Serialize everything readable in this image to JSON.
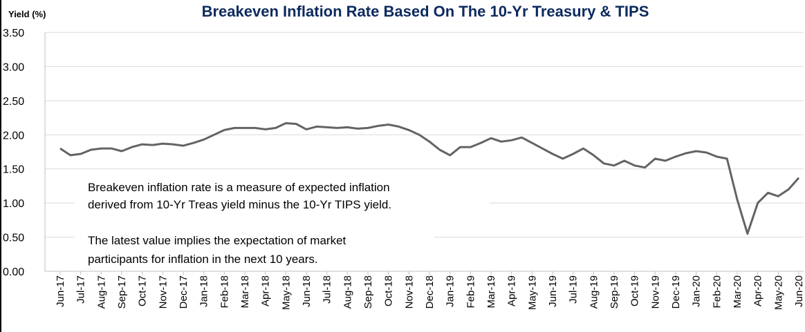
{
  "chart_data": {
    "type": "line",
    "title": "Breakeven Inflation Rate Based On The 10-Yr Treasury & TIPS",
    "y_label": "Yield (%)",
    "annotations": [
      "Breakeven inflation rate is a measure of expected inflation",
      "derived from 10-Yr Treas yield minus the 10-Yr TIPS yield.",
      "The latest value implies the expectation of market",
      "participants for inflation in the next 10 years."
    ],
    "categories": [
      "Jun-17",
      null,
      "Jul-17",
      null,
      "Aug-17",
      null,
      "Sep-17",
      null,
      "Oct-17",
      null,
      "Nov-17",
      null,
      "Dec-17",
      null,
      "Jan-18",
      null,
      "Feb-18",
      null,
      "Mar-18",
      null,
      "Apr-18",
      null,
      "May-18",
      null,
      "Jun-18",
      null,
      "Jul-18",
      null,
      "Aug-18",
      null,
      "Sep-18",
      null,
      "Oct-18",
      null,
      "Nov-18",
      null,
      "Dec-18",
      null,
      "Jan-19",
      null,
      "Feb-19",
      null,
      "Mar-19",
      null,
      "Apr-19",
      null,
      "May-19",
      null,
      "Jun-19",
      null,
      "Jul-19",
      null,
      "Aug-19",
      null,
      "Sep-19",
      null,
      "Oct-19",
      null,
      "Nov-19",
      null,
      "Dec-19",
      null,
      "Jan-20",
      null,
      "Feb-20",
      null,
      "Mar-20",
      null,
      "Apr-20",
      null,
      "May-20",
      null,
      "Jun-20"
    ],
    "series": [
      {
        "name": "Breakeven inflation rate",
        "color": "#636363",
        "values": [
          1.8,
          1.7,
          1.72,
          1.78,
          1.8,
          1.8,
          1.76,
          1.82,
          1.86,
          1.85,
          1.87,
          1.86,
          1.84,
          1.88,
          1.93,
          2.0,
          2.07,
          2.1,
          2.1,
          2.1,
          2.08,
          2.1,
          2.17,
          2.16,
          2.08,
          2.12,
          2.11,
          2.1,
          2.11,
          2.09,
          2.1,
          2.13,
          2.15,
          2.12,
          2.07,
          2.0,
          1.9,
          1.78,
          1.7,
          1.82,
          1.82,
          1.88,
          1.95,
          1.9,
          1.92,
          1.96,
          1.88,
          1.8,
          1.72,
          1.65,
          1.72,
          1.8,
          1.7,
          1.58,
          1.55,
          1.62,
          1.55,
          1.52,
          1.65,
          1.62,
          1.68,
          1.73,
          1.76,
          1.74,
          1.68,
          1.65,
          1.05,
          0.55,
          1.0,
          1.15,
          1.1,
          1.2,
          1.37
        ]
      }
    ],
    "ylim": [
      0,
      3.5
    ],
    "yticks": [
      {
        "value": 0,
        "label": "0.00"
      },
      {
        "value": 0.5,
        "label": "0.50"
      },
      {
        "value": 1,
        "label": "1.00"
      },
      {
        "value": 1.5,
        "label": "1.50"
      },
      {
        "value": 2,
        "label": "2.00"
      },
      {
        "value": 2.5,
        "label": "2.50"
      },
      {
        "value": 3,
        "label": "3.00"
      },
      {
        "value": 3.5,
        "label": "3.50"
      }
    ],
    "grid": true
  }
}
